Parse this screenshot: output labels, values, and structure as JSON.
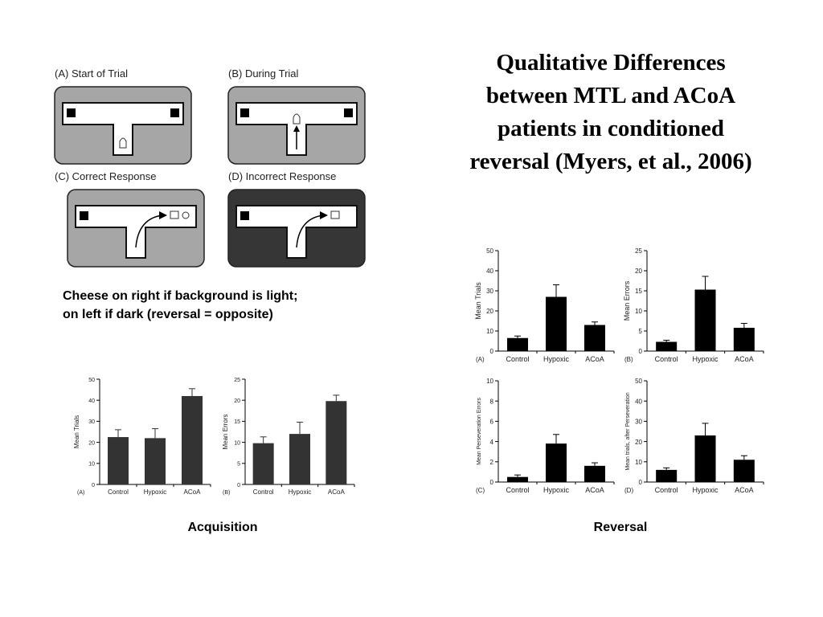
{
  "slide": {
    "title_lines": [
      "Qualitative Differences",
      "between MTL and ACoA",
      "patients in conditioned",
      "reversal (Myers, et al., 2006)"
    ],
    "caption_lines": [
      "Cheese on right if background is light;",
      "on left if dark (reversal = opposite)"
    ],
    "acquisition_label": "Acquisition",
    "reversal_label": "Reversal"
  },
  "maze_panels": [
    {
      "label": "(A) Start of Trial",
      "background": "#a6a6a6"
    },
    {
      "label": "(B) During Trial",
      "background": "#a6a6a6"
    },
    {
      "label": "(C) Correct Response",
      "background": "#a6a6a6"
    },
    {
      "label": "(D) Incorrect Response",
      "background": "#363636"
    }
  ],
  "colors": {
    "acq_bar": "#333333",
    "rev_bar": "#000000"
  },
  "chart_data": [
    {
      "type": "bar",
      "group": "Acquisition",
      "panel": "(A)",
      "categories": [
        "Control",
        "Hypoxic",
        "ACoA"
      ],
      "values": [
        22.5,
        22,
        42
      ],
      "errors": [
        3.5,
        4.5,
        3.5
      ],
      "ylabel": "Mean Trials",
      "ylim": [
        0,
        50
      ],
      "yticks": [
        0,
        10,
        20,
        30,
        40,
        50
      ]
    },
    {
      "type": "bar",
      "group": "Acquisition",
      "panel": "(B)",
      "categories": [
        "Control",
        "Hypoxic",
        "ACoA"
      ],
      "values": [
        9.8,
        12,
        19.8
      ],
      "errors": [
        1.5,
        2.8,
        1.4
      ],
      "ylabel": "Mean Errors",
      "ylim": [
        0,
        25
      ],
      "yticks": [
        0,
        5,
        10,
        15,
        20,
        25
      ]
    },
    {
      "type": "bar",
      "group": "Reversal",
      "panel": "(A)",
      "categories": [
        "Control",
        "Hypoxic",
        "ACoA"
      ],
      "values": [
        6.5,
        27,
        13
      ],
      "errors": [
        1,
        6,
        1.5
      ],
      "ylabel": "Mean Trials",
      "ylim": [
        0,
        50
      ],
      "yticks": [
        0,
        10,
        20,
        30,
        40,
        50
      ]
    },
    {
      "type": "bar",
      "group": "Reversal",
      "panel": "(B)",
      "categories": [
        "Control",
        "Hypoxic",
        "ACoA"
      ],
      "values": [
        2.3,
        15.3,
        5.8
      ],
      "errors": [
        0.4,
        3.3,
        1.1
      ],
      "ylabel": "Mean Errors",
      "ylim": [
        0,
        25
      ],
      "yticks": [
        0,
        5,
        10,
        15,
        20,
        25
      ]
    },
    {
      "type": "bar",
      "group": "Reversal",
      "panel": "(C)",
      "categories": [
        "Control",
        "Hypoxic",
        "ACoA"
      ],
      "values": [
        0.5,
        3.8,
        1.6
      ],
      "errors": [
        0.2,
        0.9,
        0.3
      ],
      "ylabel": "Mean Perseveration Errors",
      "ylim": [
        0,
        10
      ],
      "yticks": [
        0,
        2,
        4,
        6,
        8,
        10
      ]
    },
    {
      "type": "bar",
      "group": "Reversal",
      "panel": "(D)",
      "categories": [
        "Control",
        "Hypoxic",
        "ACoA"
      ],
      "values": [
        6,
        23,
        11
      ],
      "errors": [
        1,
        6,
        2
      ],
      "ylabel": "Mean trials, after Perseveration",
      "ylim": [
        0,
        50
      ],
      "yticks": [
        0,
        10,
        20,
        30,
        40,
        50
      ]
    }
  ]
}
